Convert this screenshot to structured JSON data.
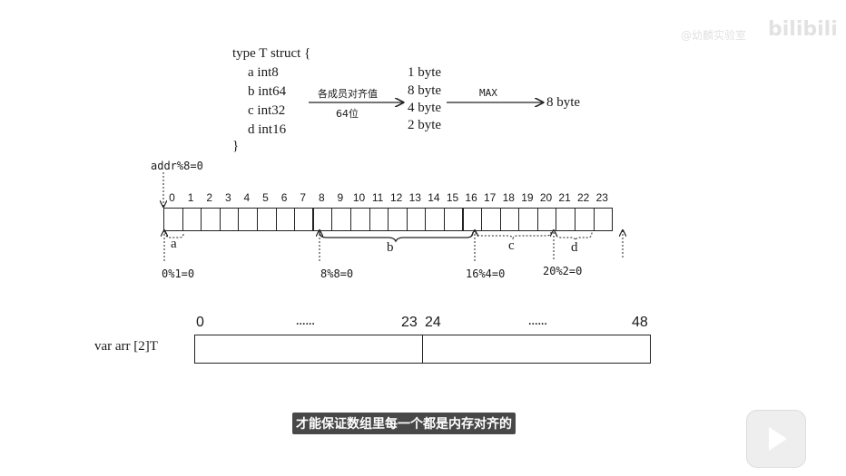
{
  "struct": {
    "header": "type T struct {",
    "fields": [
      "a int8",
      "b int64",
      "c int32",
      "d int16"
    ],
    "close": "}"
  },
  "sizes": [
    "1 byte",
    "8 byte",
    "4 byte",
    "2 byte"
  ],
  "align_label_1": "各成员对齐值",
  "align_label_2": "64位",
  "max_label": "MAX",
  "max_result": "8 byte",
  "addr_label": "addr%8=0",
  "offsets": [
    "0",
    "1",
    "2",
    "3",
    "4",
    "5",
    "6",
    "7",
    "8",
    "9",
    "10",
    "11",
    "12",
    "13",
    "14",
    "15",
    "16",
    "17",
    "18",
    "19",
    "20",
    "21",
    "22",
    "23"
  ],
  "field_letters": [
    "a",
    "b",
    "c",
    "d"
  ],
  "checks": [
    "0%1=0",
    "8%8=0",
    "16%4=0",
    "20%2=0"
  ],
  "array": {
    "label": "var arr [2]T",
    "start": "0",
    "dots_left": "......",
    "mid_left": "23",
    "mid_right": "24",
    "dots_right": "......",
    "end": "48"
  },
  "subtitle": "才能保证数组里每一个都是内存对齐的",
  "watermark": "bilibili",
  "watermark_user": "@幼麟实验室"
}
